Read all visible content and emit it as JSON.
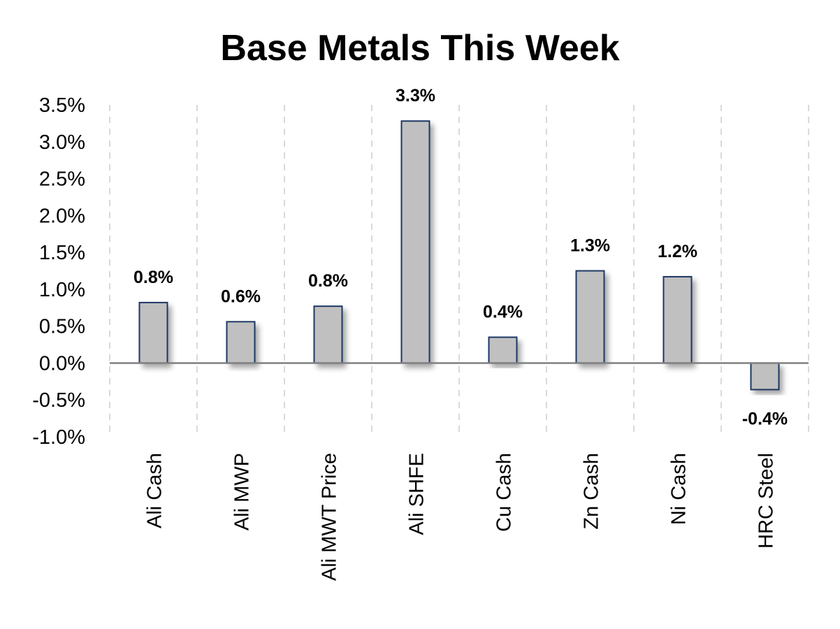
{
  "chart_data": {
    "type": "bar",
    "title": "Base Metals This Week",
    "xlabel": "",
    "ylabel": "",
    "categories": [
      "Ali Cash",
      "Ali MWP",
      "Ali MWT Price",
      "Ali SHFE",
      "Cu Cash",
      "Zn Cash",
      "Ni Cash",
      "HRC Steel"
    ],
    "values": [
      0.82,
      0.56,
      0.77,
      3.28,
      0.35,
      1.25,
      1.17,
      -0.36
    ],
    "data_labels": [
      "0.8%",
      "0.6%",
      "0.8%",
      "3.3%",
      "0.4%",
      "1.3%",
      "1.2%",
      "-0.4%"
    ],
    "ylim": [
      -1.0,
      3.5
    ],
    "yticks": [
      3.5,
      3.0,
      2.5,
      2.0,
      1.5,
      1.0,
      0.5,
      0.0,
      -0.5,
      -1.0
    ],
    "ytick_labels": [
      "3.5%",
      "3.0%",
      "2.5%",
      "2.0%",
      "1.5%",
      "1.0%",
      "0.5%",
      "0.0%",
      "-0.5%",
      "-1.0%"
    ],
    "grid": "vertical-dashed",
    "legend": "none",
    "colors": {
      "bar_fill": "#c0c0c0",
      "bar_stroke": "#1f3864",
      "zero_line": "#808080",
      "grid": "#d9d9d9"
    }
  }
}
